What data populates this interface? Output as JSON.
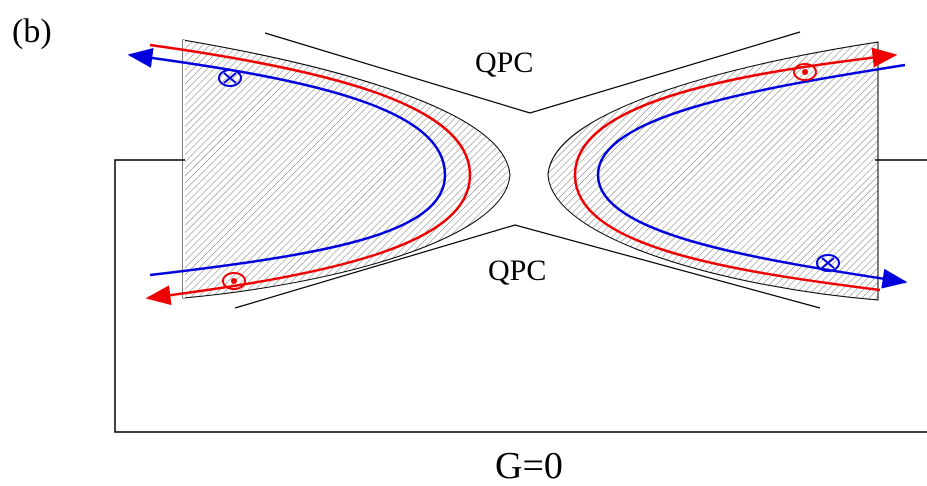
{
  "panel_label": "(b)",
  "gates": [
    {
      "label": "QPC"
    },
    {
      "label": "QPC"
    }
  ],
  "conductance_label": "G=0"
}
